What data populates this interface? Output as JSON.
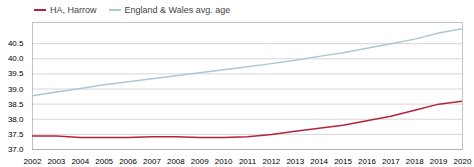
{
  "chart_data": {
    "type": "line",
    "x": [
      2002,
      2003,
      2004,
      2005,
      2006,
      2007,
      2008,
      2009,
      2010,
      2011,
      2012,
      2013,
      2014,
      2015,
      2016,
      2017,
      2018,
      2019,
      2020
    ],
    "series": [
      {
        "name": "England & Wales avg. age",
        "color": "#aec6d4",
        "values": [
          38.78,
          38.9,
          39.02,
          39.14,
          39.24,
          39.34,
          39.44,
          39.54,
          39.64,
          39.74,
          39.84,
          39.95,
          40.08,
          40.2,
          40.35,
          40.5,
          40.65,
          40.85,
          41.0
        ]
      },
      {
        "name": "HA, Harrow",
        "color": "#b5233a",
        "values": [
          37.45,
          37.45,
          37.4,
          37.4,
          37.4,
          37.42,
          37.42,
          37.4,
          37.4,
          37.42,
          37.5,
          37.6,
          37.7,
          37.8,
          37.95,
          38.1,
          38.3,
          38.5,
          38.6
        ]
      }
    ],
    "xlim": [
      2002,
      2020
    ],
    "xticks": [
      2002,
      2003,
      2004,
      2005,
      2006,
      2007,
      2008,
      2009,
      2010,
      2011,
      2012,
      2013,
      2014,
      2015,
      2016,
      2017,
      2018,
      2019,
      2020
    ],
    "ylim": [
      37.0,
      41.2
    ],
    "yticks": [
      {
        "value": 37.0,
        "label": "37.0"
      },
      37.5,
      {
        "value": 38.0,
        "label": "38.0"
      },
      38.5,
      {
        "value": 39.0,
        "label": "39.0"
      },
      39.5,
      {
        "value": 40.0,
        "label": "40.0"
      },
      40.5
    ],
    "grid": true,
    "legend": "upper left"
  }
}
